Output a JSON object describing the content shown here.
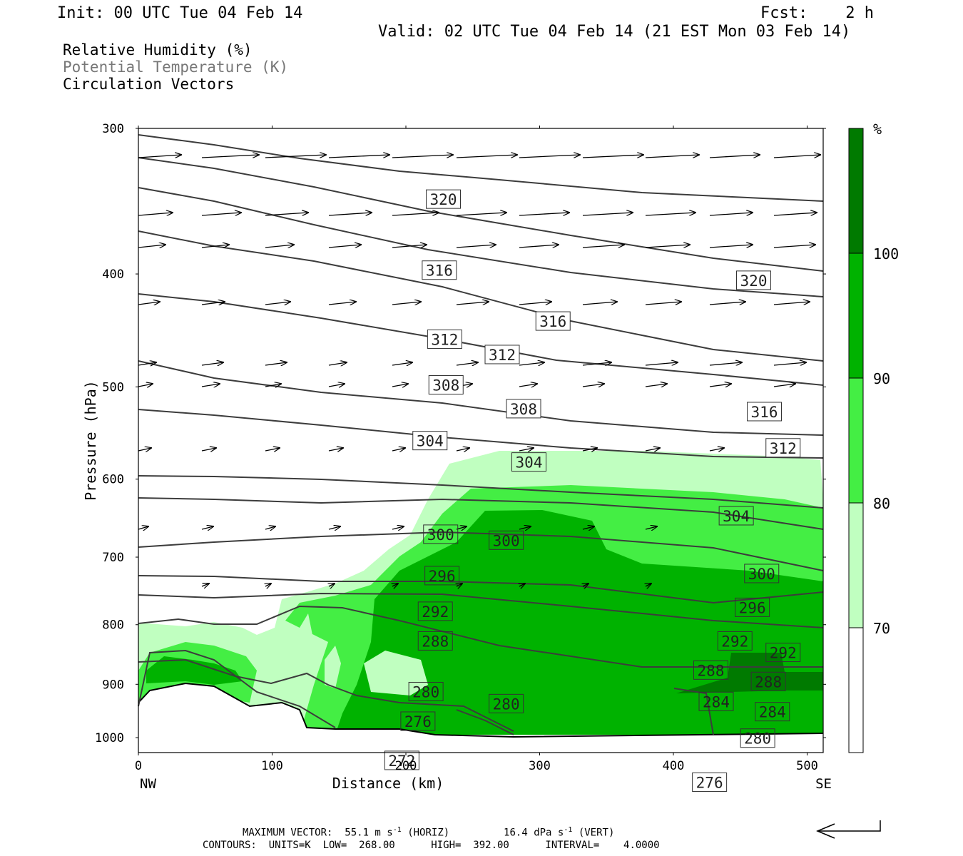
{
  "header": {
    "init": "Init: 00 UTC Tue 04 Feb 14",
    "fcst": "Fcst:    2 h",
    "valid": "Valid: 02 UTC Tue 04 Feb 14 (21 EST Mon 03 Feb 14)"
  },
  "fields": {
    "rh": "Relative Humidity (%)",
    "theta": "Potential Temperature (K)",
    "vectors": "Circulation Vectors"
  },
  "colors": {
    "rh_70_80": "#c0ffc0",
    "rh_80_90": "#44ee44",
    "rh_90_100": "#00b200",
    "rh_100": "#007a00",
    "contour": "#3c3c3c",
    "vector": "#000000"
  },
  "chart_data": {
    "type": "contour",
    "xlabel": "Distance (km)",
    "ylabel": "Pressure (hPa)",
    "x_ticks": [
      "0",
      "100",
      "200",
      "300",
      "400",
      "500"
    ],
    "y_ticks": [
      "300",
      "400",
      "500",
      "600",
      "700",
      "800",
      "900",
      "1000"
    ],
    "xlim": [
      0,
      512
    ],
    "ylim": [
      1030,
      300
    ],
    "y_scale": "log",
    "left_end_label": "NW",
    "right_end_label": "SE",
    "colorbar": {
      "unit": "%",
      "levels": [
        "70",
        "80",
        "90",
        "100"
      ]
    },
    "theta_labels": [
      {
        "v": "320",
        "x": 228,
        "p": 345
      },
      {
        "v": "316",
        "x": 225,
        "p": 397
      },
      {
        "v": "320",
        "x": 460,
        "p": 405
      },
      {
        "v": "316",
        "x": 310,
        "p": 439
      },
      {
        "v": "312",
        "x": 229,
        "p": 455
      },
      {
        "v": "312",
        "x": 272,
        "p": 469
      },
      {
        "v": "308",
        "x": 230,
        "p": 498
      },
      {
        "v": "308",
        "x": 288,
        "p": 522
      },
      {
        "v": "316",
        "x": 468,
        "p": 525
      },
      {
        "v": "304",
        "x": 218,
        "p": 556
      },
      {
        "v": "312",
        "x": 482,
        "p": 564
      },
      {
        "v": "304",
        "x": 292,
        "p": 580
      },
      {
        "v": "304",
        "x": 447,
        "p": 645
      },
      {
        "v": "300",
        "x": 226,
        "p": 669
      },
      {
        "v": "300",
        "x": 275,
        "p": 677
      },
      {
        "v": "296",
        "x": 227,
        "p": 726
      },
      {
        "v": "300",
        "x": 466,
        "p": 723
      },
      {
        "v": "296",
        "x": 459,
        "p": 773
      },
      {
        "v": "292",
        "x": 222,
        "p": 779
      },
      {
        "v": "292",
        "x": 446,
        "p": 826
      },
      {
        "v": "292",
        "x": 482,
        "p": 845
      },
      {
        "v": "288",
        "x": 222,
        "p": 826
      },
      {
        "v": "288",
        "x": 428,
        "p": 875
      },
      {
        "v": "288",
        "x": 471,
        "p": 895
      },
      {
        "v": "280",
        "x": 215,
        "p": 913
      },
      {
        "v": "280",
        "x": 275,
        "p": 935
      },
      {
        "v": "284",
        "x": 432,
        "p": 931
      },
      {
        "v": "284",
        "x": 474,
        "p": 950
      },
      {
        "v": "276",
        "x": 209,
        "p": 968
      },
      {
        "v": "280",
        "x": 463,
        "p": 1001
      },
      {
        "v": "272",
        "x": 197,
        "p": 1046
      },
      {
        "v": "276",
        "x": 427,
        "p": 1092
      }
    ]
  },
  "footer": {
    "max_vector_prefix": "MAXIMUM VECTOR:  55.1 m s",
    "max_vector_mid": " (HORIZ)         16.4 dPa s",
    "max_vector_suffix": " (VERT)",
    "superscript": "-1",
    "contours_line": "CONTOURS:  UNITS=K  LOW=  268.00      HIGH=  392.00      INTERVAL=    4.0000"
  }
}
